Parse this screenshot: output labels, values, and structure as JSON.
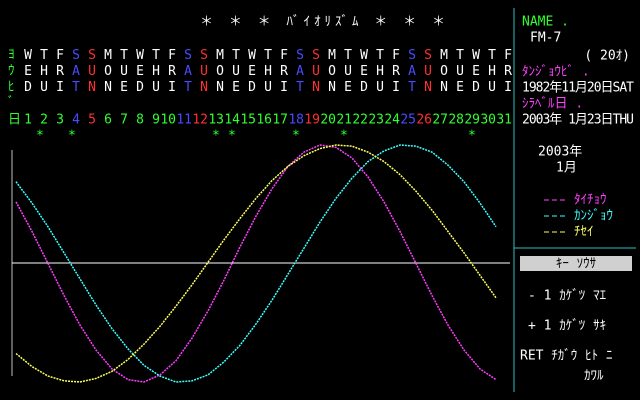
{
  "header": {
    "title": "＊ ＊ ＊ ﾊﾞｲｵﾘｽﾞﾑ ＊ ＊ ＊",
    "weekday_header": [
      "ﾖ",
      "ｳ",
      "ﾋ",
      "ﾞ"
    ],
    "date_header": "日"
  },
  "chart_data": {
    "type": "line",
    "categories": [
      1,
      2,
      3,
      4,
      5,
      6,
      7,
      8,
      9,
      10,
      11,
      12,
      13,
      14,
      15,
      16,
      17,
      18,
      19,
      20,
      21,
      22,
      23,
      24,
      25,
      26,
      27,
      28,
      29,
      30,
      31
    ],
    "weekdays": [
      "WED",
      "THU",
      "FRI",
      "SAT",
      "SUN",
      "MON",
      "TUE",
      "WED",
      "THU",
      "FRI",
      "SAT",
      "SUN",
      "MON",
      "TUE",
      "WED",
      "THU",
      "FRI",
      "SAT",
      "SUN",
      "MON",
      "TUE",
      "WED",
      "THU",
      "FRI",
      "SAT",
      "SUN",
      "MON",
      "TUE",
      "WED",
      "THU",
      "FRI"
    ],
    "weekday_colors": {
      "SAT": "#4a4aff",
      "SUN": "#ff3030"
    },
    "critical_marker": "*",
    "critical_days": [
      2,
      4,
      13,
      14,
      18,
      21,
      29
    ],
    "ylim": [
      -100,
      100
    ],
    "series": [
      {
        "name": "ﾀｲﾁｮｳ",
        "color": "#ff40ff",
        "values": [
          52,
          27,
          0,
          -27,
          -52,
          -73,
          -89,
          -98,
          -100,
          -94,
          -82,
          -63,
          -40,
          -14,
          14,
          40,
          63,
          82,
          94,
          100,
          98,
          89,
          73,
          52,
          27,
          0,
          -27,
          -52,
          -73,
          -89,
          -98
        ]
      },
      {
        "name": "ｶﾝｼﾞｮｳ",
        "color": "#40ffff",
        "values": [
          69,
          51,
          31,
          9,
          -13,
          -35,
          -55,
          -72,
          -86,
          -95,
          -100,
          -99,
          -94,
          -83,
          -69,
          -51,
          -31,
          -9,
          13,
          35,
          55,
          72,
          86,
          95,
          100,
          99,
          94,
          83,
          69,
          51,
          31
        ]
      },
      {
        "name": "ﾁｾｲ",
        "color": "#ffff60",
        "values": [
          -76,
          -87,
          -95,
          -99,
          -100,
          -97,
          -91,
          -81,
          -68,
          -53,
          -36,
          -18,
          1,
          20,
          38,
          55,
          70,
          82,
          91,
          97,
          100,
          99,
          94,
          86,
          75,
          61,
          45,
          27,
          9,
          -10,
          -29
        ]
      }
    ]
  },
  "panel": {
    "name_label": "NAME .",
    "name": "FM-7",
    "age": "( 20ｵ)",
    "birth_label": "ﾀﾝｼﾞｮｳﾋﾞ .",
    "birth_date": "1982年11月20日SAT",
    "check_label": "ｼﾗﾍﾞﾙ日 .",
    "check_date": "2003年 1月23日THU",
    "year": "2003年",
    "month": "1月",
    "keys_title": "ｷｰ ｿｳｻ",
    "keys": [
      "-  1 ｶｹﾞﾂ ﾏｴ",
      "+  1 ｶｹﾞﾂ ｻｷ",
      "RET ﾁｶﾞｳ ﾋﾄ ﾆ",
      "ｶﾜﾙ"
    ]
  }
}
